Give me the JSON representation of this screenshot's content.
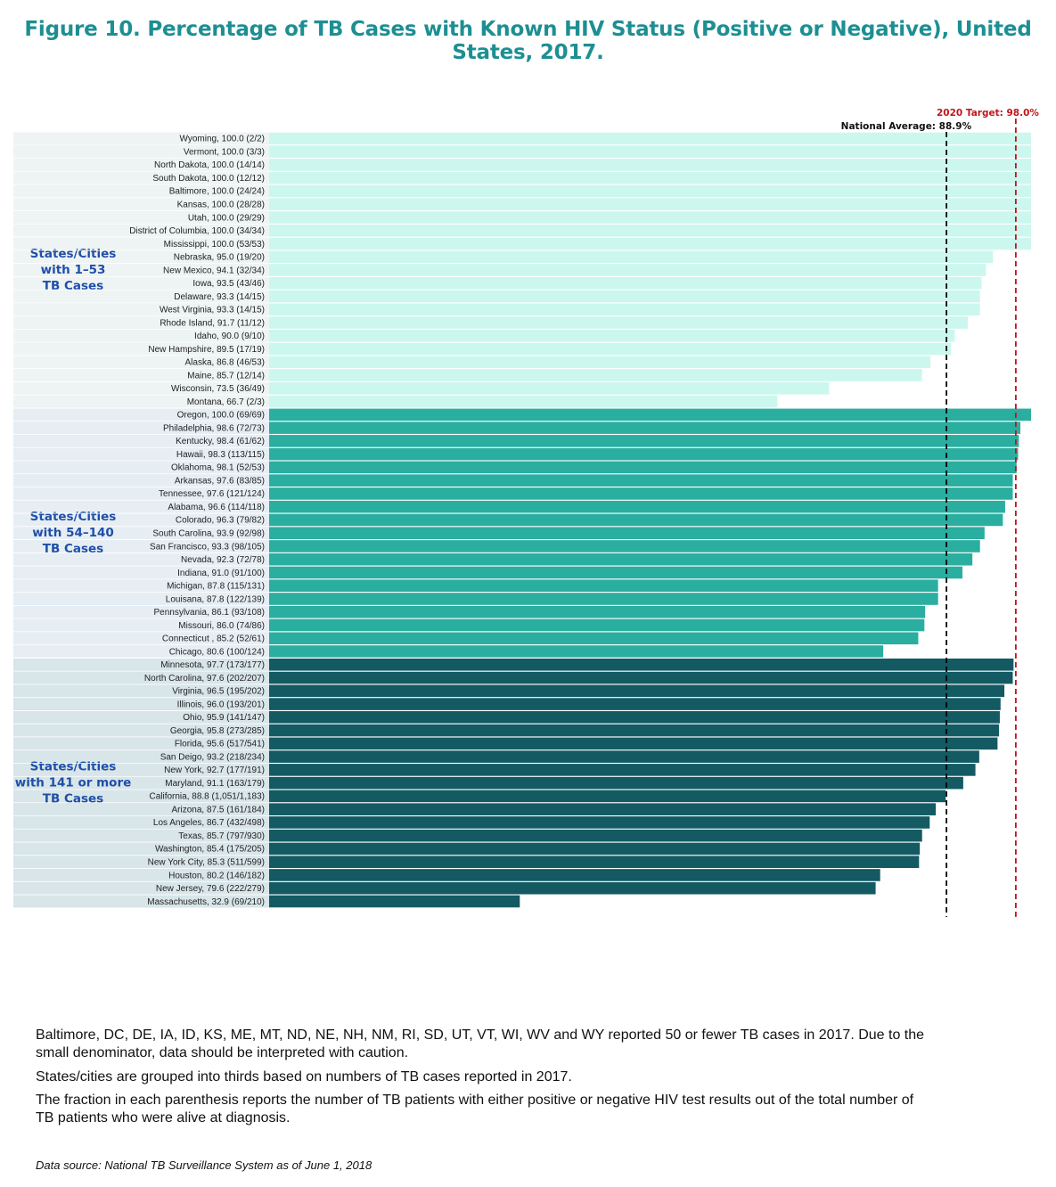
{
  "title": "Figure 10.  Percentage of TB Cases with Known HIV Status (Positive or Negative), United States, 2017.",
  "notes": {
    "line1": "Baltimore, DC, DE, IA, ID, KS, ME, MT, ND, NE, NH, NM, RI, SD, UT, VT, WI, WV and WY reported 50 or fewer TB cases in 2017. Due to the small denominator, data should be interpreted with caution.",
    "line2": "States/cities are grouped into thirds based on numbers of TB cases reported in 2017.",
    "line3": "The fraction in each parenthesis reports the number of TB patients with either positive or negative HIV test results out of the total number of TB patients who were alive at diagnosis."
  },
  "source": "Data source: National TB Surveillance System as of June 1, 2018",
  "colors": {
    "group1": "#ccf7ee",
    "group2": "#2aaea0",
    "group3": "#135a63",
    "group1_panel": "#eef3f3",
    "group2_panel": "#e6eef4",
    "group3_panel": "#d8e5e9",
    "group_label": "#1f4fa8",
    "national_line": "#000000",
    "target_line": "#c0161c"
  },
  "chart_data": {
    "type": "bar",
    "orientation": "horizontal",
    "xlim": [
      0,
      100
    ],
    "reference_lines": [
      {
        "label": "National Average: 88.9%",
        "value": 88.9,
        "style": "dashed-black"
      },
      {
        "label": "2020 Target: 98.0%",
        "value": 98.0,
        "style": "dashed-red"
      }
    ],
    "groups": [
      {
        "label_lines": [
          "States/Cities",
          "with 1–53",
          "TB Cases"
        ],
        "color_key": "group1",
        "panel_key": "group1_panel",
        "bars": [
          {
            "label": "Wyoming, 100.0 (2/2)",
            "value": 100.0
          },
          {
            "label": "Vermont, 100.0 (3/3)",
            "value": 100.0
          },
          {
            "label": "North Dakota, 100.0 (14/14)",
            "value": 100.0
          },
          {
            "label": "South Dakota, 100.0 (12/12)",
            "value": 100.0
          },
          {
            "label": "Baltimore, 100.0 (24/24)",
            "value": 100.0
          },
          {
            "label": "Kansas, 100.0 (28/28)",
            "value": 100.0
          },
          {
            "label": "Utah, 100.0 (29/29)",
            "value": 100.0
          },
          {
            "label": "District of Columbia, 100.0 (34/34)",
            "value": 100.0
          },
          {
            "label": "Mississippi, 100.0 (53/53)",
            "value": 100.0
          },
          {
            "label": "Nebraska, 95.0 (19/20)",
            "value": 95.0
          },
          {
            "label": "New Mexico, 94.1 (32/34)",
            "value": 94.1
          },
          {
            "label": "Iowa, 93.5 (43/46)",
            "value": 93.5
          },
          {
            "label": "Delaware, 93.3 (14/15)",
            "value": 93.3
          },
          {
            "label": "West Virginia, 93.3 (14/15)",
            "value": 93.3
          },
          {
            "label": "Rhode Island, 91.7 (11/12)",
            "value": 91.7
          },
          {
            "label": "Idaho, 90.0 (9/10)",
            "value": 90.0
          },
          {
            "label": "New Hampshire, 89.5 (17/19)",
            "value": 89.5
          },
          {
            "label": "Alaska, 86.8 (46/53)",
            "value": 86.8
          },
          {
            "label": "Maine, 85.7 (12/14)",
            "value": 85.7
          },
          {
            "label": "Wisconsin, 73.5 (36/49)",
            "value": 73.5
          },
          {
            "label": "Montana, 66.7 (2/3)",
            "value": 66.7
          }
        ]
      },
      {
        "label_lines": [
          "States/Cities",
          "with 54–140",
          "TB Cases"
        ],
        "color_key": "group2",
        "panel_key": "group2_panel",
        "bars": [
          {
            "label": "Oregon, 100.0  (69/69)",
            "value": 100.0
          },
          {
            "label": "Philadelphia, 98.6 (72/73)",
            "value": 98.6
          },
          {
            "label": "Kentucky, 98.4 (61/62)",
            "value": 98.4
          },
          {
            "label": "Hawaii, 98.3 (113/115)",
            "value": 98.3
          },
          {
            "label": "Oklahoma, 98.1 (52/53)",
            "value": 98.1
          },
          {
            "label": "Arkansas, 97.6 (83/85)",
            "value": 97.6
          },
          {
            "label": "Tennessee, 97.6 (121/124)",
            "value": 97.6
          },
          {
            "label": "Alabama, 96.6 (114/118)",
            "value": 96.6
          },
          {
            "label": "Colorado, 96.3 (79/82)",
            "value": 96.3
          },
          {
            "label": "South Carolina, 93.9 (92/98)",
            "value": 93.9
          },
          {
            "label": "San Francisco, 93.3 (98/105)",
            "value": 93.3
          },
          {
            "label": "Nevada, 92.3 (72/78)",
            "value": 92.3
          },
          {
            "label": "Indiana, 91.0 (91/100)",
            "value": 91.0
          },
          {
            "label": "Michigan, 87.8 (115/131)",
            "value": 87.8
          },
          {
            "label": "Louisana, 87.8 (122/139)",
            "value": 87.8
          },
          {
            "label": "Pennsylvania, 86.1 (93/108)",
            "value": 86.1
          },
          {
            "label": "Missouri, 86.0 (74/86)",
            "value": 86.0
          },
          {
            "label": "Connecticut , 85.2 (52/61)",
            "value": 85.2
          },
          {
            "label": "Chicago, 80.6 (100/124)",
            "value": 80.6
          }
        ]
      },
      {
        "label_lines": [
          "States/Cities",
          "with 141 or more",
          "TB Cases"
        ],
        "color_key": "group3",
        "panel_key": "group3_panel",
        "bars": [
          {
            "label": "Minnesota, 97.7 (173/177)",
            "value": 97.7
          },
          {
            "label": "North Carolina, 97.6 (202/207)",
            "value": 97.6
          },
          {
            "label": "Virginia, 96.5 (195/202)",
            "value": 96.5
          },
          {
            "label": "Illinois, 96.0 (193/201)",
            "value": 96.0
          },
          {
            "label": "Ohio, 95.9 (141/147)",
            "value": 95.9
          },
          {
            "label": "Georgia, 95.8 (273/285)",
            "value": 95.8
          },
          {
            "label": "Florida, 95.6 (517/541)",
            "value": 95.6
          },
          {
            "label": "San Deigo, 93.2 (218/234)",
            "value": 93.2
          },
          {
            "label": "New York, 92.7 (177/191)",
            "value": 92.7
          },
          {
            "label": "Maryland, 91.1 (163/179)",
            "value": 91.1
          },
          {
            "label": "California, 88.8 (1,051/1,183)",
            "value": 88.8
          },
          {
            "label": "Arizona, 87.5 (161/184)",
            "value": 87.5
          },
          {
            "label": "Los Angeles, 86.7 (432/498)",
            "value": 86.7
          },
          {
            "label": "Texas, 85.7 (797/930)",
            "value": 85.7
          },
          {
            "label": "Washington, 85.4 (175/205)",
            "value": 85.4
          },
          {
            "label": "New York City, 85.3 (511/599)",
            "value": 85.3
          },
          {
            "label": "Houston, 80.2 (146/182)",
            "value": 80.2
          },
          {
            "label": "New Jersey, 79.6 (222/279)",
            "value": 79.6
          },
          {
            "label": "Massachusetts, 32.9 (69/210)",
            "value": 32.9
          }
        ]
      }
    ]
  }
}
